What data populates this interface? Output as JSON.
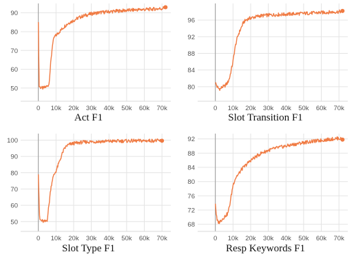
{
  "chart_data": [
    {
      "type": "line",
      "title": "Act F1",
      "xlabel": "",
      "ylabel": "",
      "xlim": [
        -10000,
        75000
      ],
      "ylim": [
        43,
        95
      ],
      "xticks": [
        0,
        10000,
        20000,
        30000,
        40000,
        50000,
        60000,
        70000
      ],
      "xtick_labels": [
        "0",
        "10k",
        "20k",
        "30k",
        "40k",
        "50k",
        "60k",
        "70k"
      ],
      "yticks": [
        50,
        60,
        70,
        80,
        90
      ],
      "grid": true,
      "series": [
        {
          "color": "#f07a42",
          "x": [
            0,
            200,
            500,
            1000,
            2000,
            3000,
            4000,
            5000,
            6000,
            7000,
            8000,
            9000,
            10000,
            11000,
            12000,
            13000,
            15000,
            17000,
            20000,
            23000,
            26000,
            30000,
            35000,
            40000,
            45000,
            50000,
            55000,
            60000,
            65000,
            70000,
            72000
          ],
          "y": [
            86,
            70,
            51,
            50.5,
            50,
            50,
            50.5,
            51,
            52,
            63,
            73,
            77,
            78,
            79,
            80,
            81,
            83,
            84.5,
            86,
            87.5,
            88.5,
            89.5,
            90.2,
            90.6,
            91,
            91.3,
            91.6,
            91.8,
            92,
            92.3,
            93
          ]
        }
      ]
    },
    {
      "type": "line",
      "title": "Slot Transition F1",
      "xlabel": "",
      "ylabel": "",
      "xlim": [
        -10000,
        75000
      ],
      "ylim": [
        76.5,
        100
      ],
      "xticks": [
        0,
        10000,
        20000,
        30000,
        40000,
        50000,
        60000,
        70000
      ],
      "xtick_labels": [
        "0",
        "10k",
        "20k",
        "30k",
        "40k",
        "50k",
        "60k",
        "70k"
      ],
      "yticks": [
        80,
        84,
        88,
        92,
        96
      ],
      "grid": true,
      "series": [
        {
          "color": "#f07a42",
          "x": [
            0,
            1000,
            2000,
            3000,
            4000,
            5000,
            6000,
            7000,
            8000,
            9000,
            10000,
            11000,
            12000,
            13000,
            14000,
            15000,
            16000,
            18000,
            20000,
            25000,
            30000,
            35000,
            40000,
            45000,
            50000,
            55000,
            60000,
            65000,
            70000,
            72000
          ],
          "y": [
            81,
            80,
            79.5,
            79.5,
            80,
            80,
            80.5,
            81,
            82,
            84,
            86,
            89,
            91,
            92.5,
            93.5,
            94.5,
            95.5,
            96.2,
            96.5,
            97,
            97.2,
            97.3,
            97.4,
            97.5,
            97.6,
            97.7,
            97.8,
            97.9,
            98,
            98.2
          ]
        }
      ]
    },
    {
      "type": "line",
      "title": "Slot Type F1",
      "xlabel": "",
      "ylabel": "",
      "xlim": [
        -10000,
        75000
      ],
      "ylim": [
        44,
        104
      ],
      "xticks": [
        0,
        10000,
        20000,
        30000,
        40000,
        50000,
        60000,
        70000
      ],
      "xtick_labels": [
        "0",
        "10k",
        "20k",
        "30k",
        "40k",
        "50k",
        "60k",
        "70k"
      ],
      "yticks": [
        50,
        60,
        70,
        80,
        90,
        100
      ],
      "grid": true,
      "series": [
        {
          "color": "#f07a42",
          "x": [
            0,
            300,
            700,
            1000,
            2000,
            3000,
            4000,
            5000,
            6000,
            7000,
            8000,
            9000,
            10000,
            11000,
            12000,
            13000,
            14000,
            15000,
            16000,
            18000,
            20000,
            25000,
            30000,
            40000,
            50000,
            60000,
            66000,
            70000
          ],
          "y": [
            80,
            68,
            53,
            51,
            50.5,
            50,
            50,
            51,
            60,
            70,
            76,
            79,
            81,
            84,
            87,
            90,
            93,
            95,
            96.5,
            97.5,
            98,
            98.7,
            99,
            99.3,
            99.5,
            99.6,
            99.7,
            99.6
          ]
        }
      ]
    },
    {
      "type": "line",
      "title": "Resp Keywords F1",
      "xlabel": "",
      "ylabel": "",
      "xlim": [
        -10000,
        75000
      ],
      "ylim": [
        66,
        93.5
      ],
      "xticks": [
        0,
        10000,
        20000,
        30000,
        40000,
        50000,
        60000,
        70000
      ],
      "xtick_labels": [
        "0",
        "10k",
        "20k",
        "30k",
        "40k",
        "50k",
        "60k",
        "70k"
      ],
      "yticks": [
        68,
        72,
        76,
        80,
        84,
        88,
        92
      ],
      "grid": true,
      "series": [
        {
          "color": "#f07a42",
          "x": [
            0,
            500,
            1000,
            2000,
            3000,
            4000,
            5000,
            6000,
            7000,
            8000,
            9000,
            10000,
            11000,
            12000,
            13000,
            15000,
            17000,
            20000,
            23000,
            26000,
            30000,
            35000,
            40000,
            45000,
            50000,
            55000,
            60000,
            65000,
            70000,
            72000
          ],
          "y": [
            74,
            71,
            69,
            68.5,
            69,
            69.5,
            70,
            70.5,
            71,
            73,
            76,
            79,
            80.5,
            81.5,
            82,
            83.5,
            84.5,
            86,
            87,
            88,
            88.8,
            89.5,
            90,
            90.5,
            91,
            91.3,
            91.6,
            91.9,
            92.2,
            91.8
          ]
        }
      ]
    }
  ]
}
